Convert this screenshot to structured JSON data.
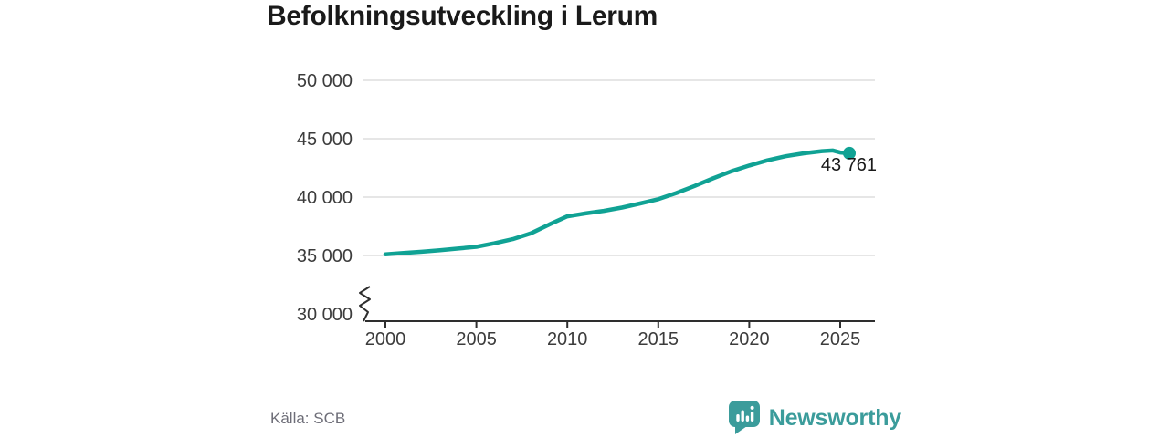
{
  "chart": {
    "title": "Befolkningsutveckling i Lerum",
    "source": "Källa: SCB"
  },
  "footer": {
    "brand": "Newsworthy"
  },
  "colors": {
    "line": "#10a294",
    "brand": "#3b9c9b",
    "grid": "#d8d8d8",
    "axis": "#2e2e2e",
    "tick-text": "#3c3c3c",
    "title-text": "#1a1a1a",
    "source-text": "#6e6e78"
  },
  "chart_data": {
    "type": "line",
    "title": "Befolkningsutveckling i Lerum",
    "source": "Källa: SCB",
    "xlabel": "",
    "ylabel": "",
    "grid": "horizontal",
    "axis_break": true,
    "ylim_display": [
      30000,
      50000
    ],
    "xlim_display": [
      1998.9,
      2026.9
    ],
    "x": [
      2000,
      2001,
      2002,
      2003,
      2004,
      2005,
      2006,
      2007,
      2008,
      2009,
      2010,
      2011,
      2012,
      2013,
      2014,
      2015,
      2016,
      2017,
      2018,
      2019,
      2020,
      2021,
      2022,
      2023,
      2024,
      2024.6,
      2025,
      2025.5
    ],
    "values": [
      35100,
      35210,
      35320,
      35450,
      35590,
      35740,
      36050,
      36400,
      36900,
      37650,
      38350,
      38600,
      38820,
      39100,
      39450,
      39820,
      40350,
      40950,
      41600,
      42200,
      42700,
      43150,
      43500,
      43750,
      43940,
      43990,
      43820,
      43761
    ],
    "last_point": {
      "x": 2025.5,
      "value": 43761,
      "label": "43 761"
    },
    "xticks": [
      {
        "value": 2000,
        "label": "2000"
      },
      {
        "value": 2005,
        "label": "2005"
      },
      {
        "value": 2010,
        "label": "2010"
      },
      {
        "value": 2015,
        "label": "2015"
      },
      {
        "value": 2020,
        "label": "2020"
      },
      {
        "value": 2025,
        "label": "2025"
      }
    ],
    "yticks": [
      {
        "value": 50000,
        "label": "50 000"
      },
      {
        "value": 45000,
        "label": "45 000"
      },
      {
        "value": 40000,
        "label": "40 000"
      },
      {
        "value": 35000,
        "label": "35 000"
      },
      {
        "value": 30000,
        "label": "30 000",
        "gridline": false
      }
    ]
  }
}
